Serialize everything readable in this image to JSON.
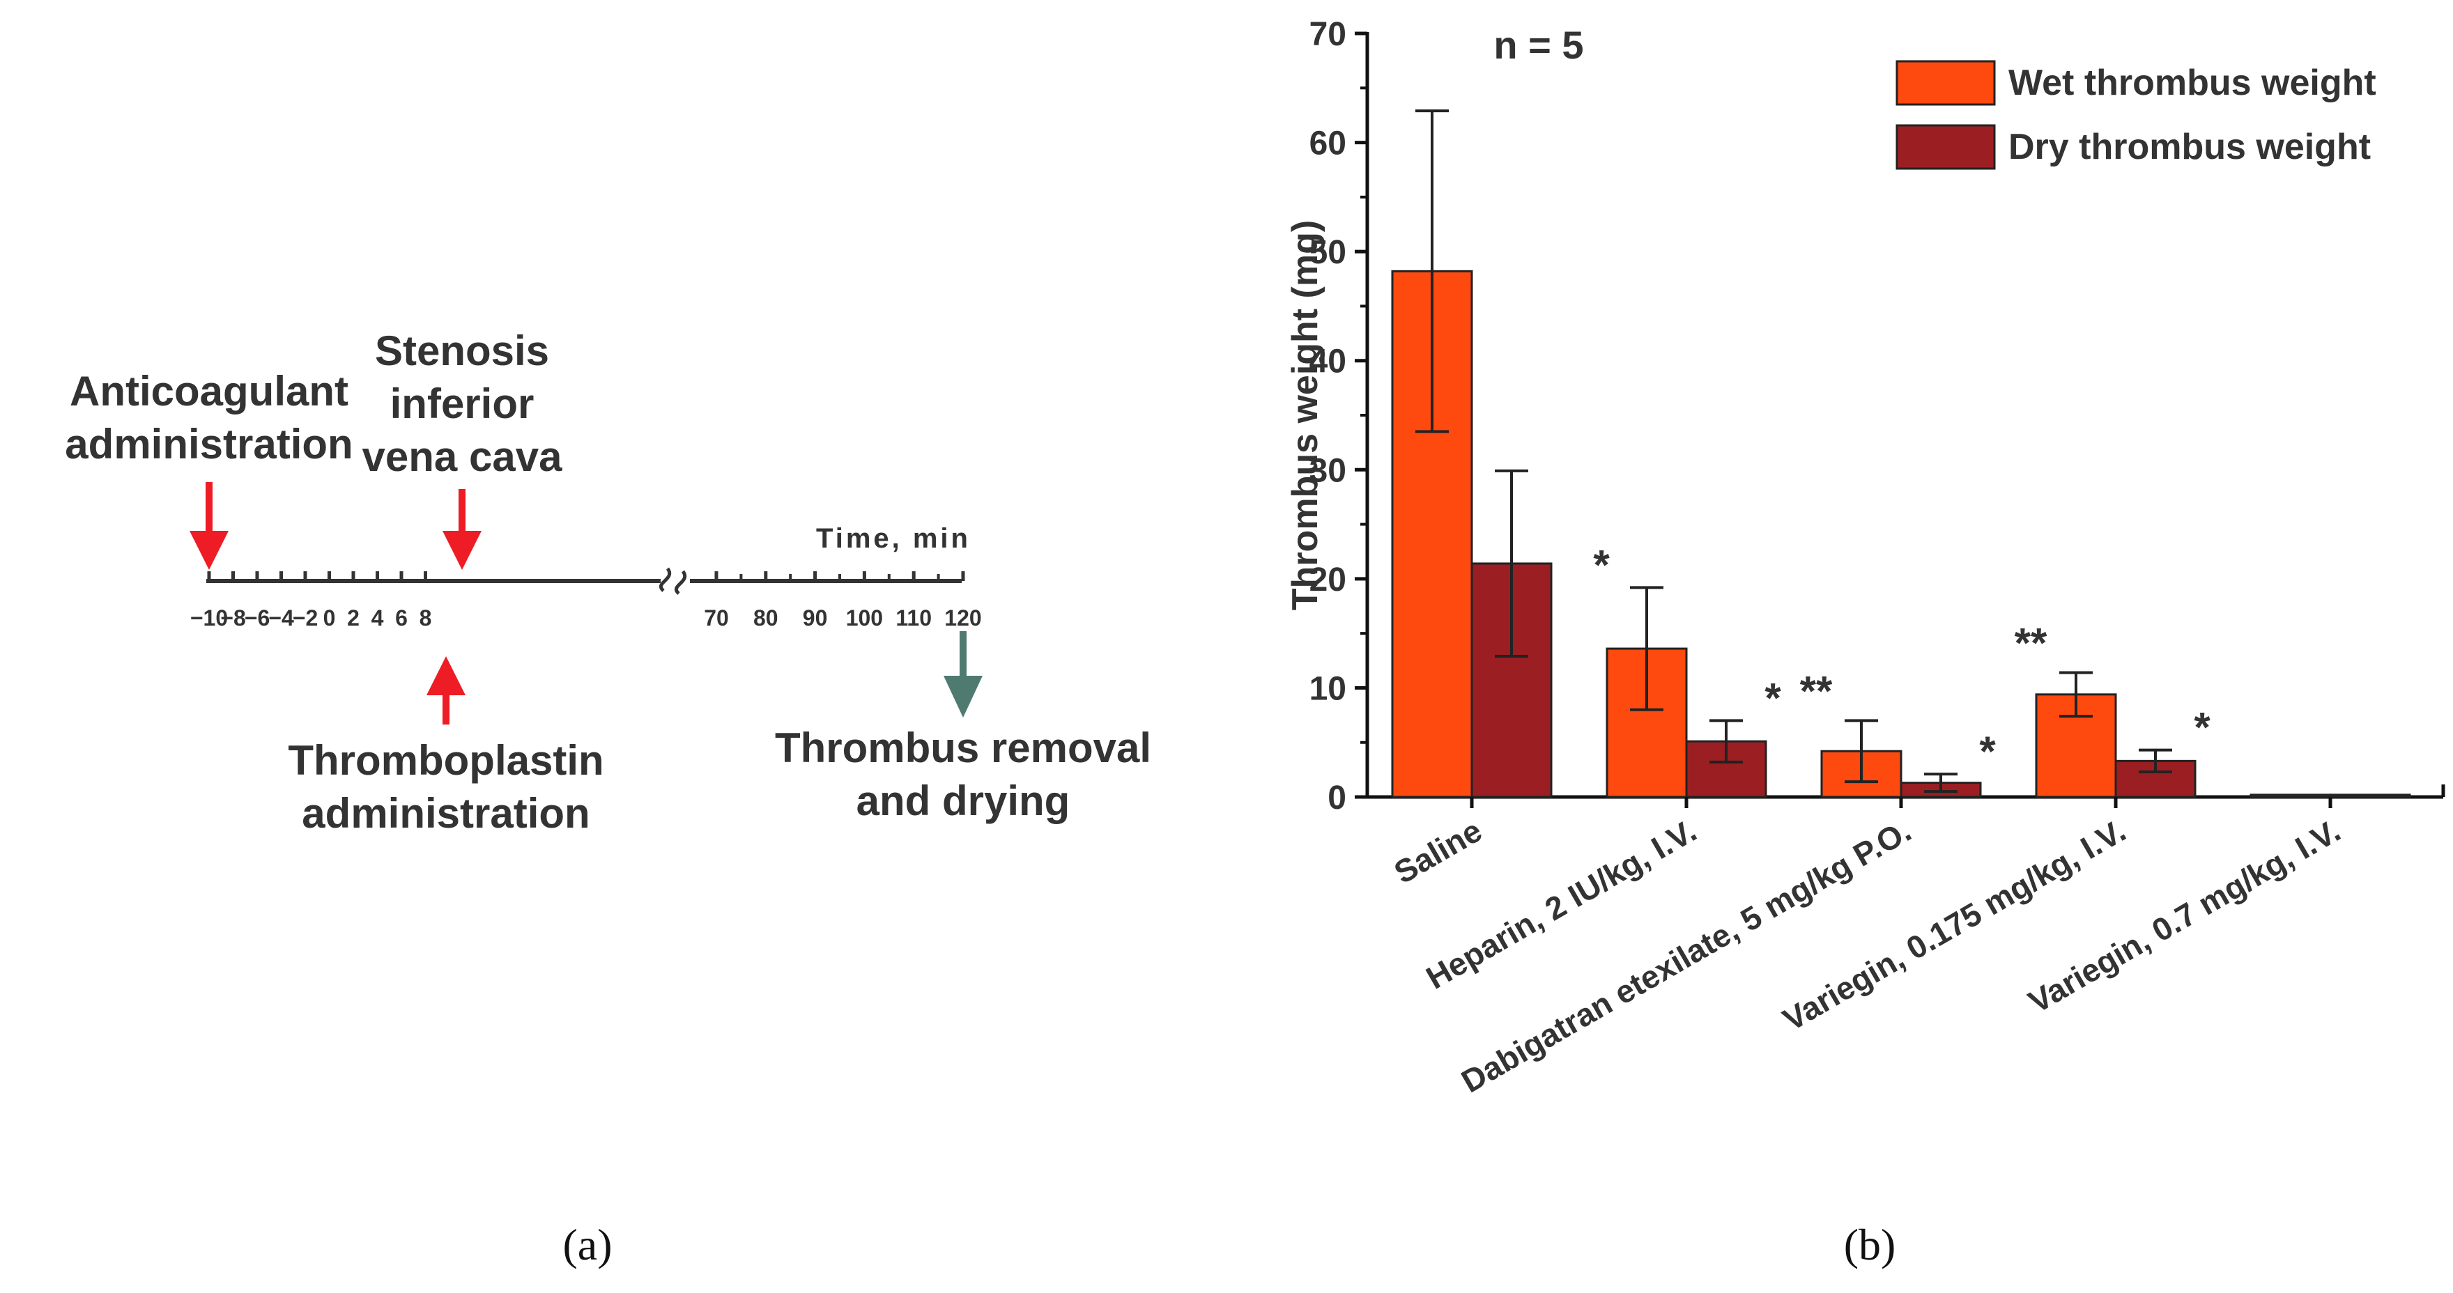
{
  "panel_a": {
    "caption": "(a)",
    "timeline_label": "Time, min",
    "ticks_before_break": [
      "−10",
      "−8",
      "−6",
      "−4",
      "−2",
      "0",
      "2",
      "4",
      "6",
      "8"
    ],
    "ticks_after_break": [
      "70",
      "80",
      "90",
      "100",
      "110",
      "120"
    ],
    "events": {
      "anticoagulant": [
        "Anticoagulant",
        "administration"
      ],
      "stenosis": [
        "Stenosis",
        "inferior",
        "vena cava"
      ],
      "thromboplastin": [
        "Thromboplastin",
        "administration"
      ],
      "removal": [
        "Thrombus removal",
        "and drying"
      ]
    },
    "colors": {
      "red_arrow": "#ee1c25",
      "teal_arrow": "#4f7a70",
      "line": "#333333"
    }
  },
  "panel_b": {
    "caption": "(b)",
    "annotation_n": "n = 5"
  },
  "chart_data": {
    "type": "bar",
    "ylabel": "Thrombus weight (mg)",
    "ylim": [
      0,
      70
    ],
    "yticks": [
      0,
      10,
      20,
      30,
      40,
      50,
      60,
      70
    ],
    "categories": [
      "Saline",
      "Heparin, 2 IU/kg, I.V.",
      "Dabigatran etexilate, 5 mg/kg P.O.",
      "Variegin, 0.175 mg/kg, I.V.",
      "Variegin, 0.7 mg/kg, I.V."
    ],
    "series": [
      {
        "name": "Wet thrombus weight",
        "color": "#ff4a0f",
        "values": [
          48.2,
          13.6,
          4.2,
          9.4,
          0.2
        ],
        "errors": [
          14.7,
          5.6,
          2.8,
          2.0,
          0
        ],
        "significance": [
          "",
          "*",
          "**",
          "**",
          ""
        ]
      },
      {
        "name": "Dry thrombus weight",
        "color": "#9b1f22",
        "values": [
          21.4,
          5.1,
          1.3,
          3.3,
          0.2
        ],
        "errors": [
          8.5,
          1.9,
          0.8,
          1.0,
          0
        ],
        "significance": [
          "",
          "*",
          "*",
          "*",
          ""
        ]
      }
    ],
    "legend_position": "top-right",
    "grid": false
  }
}
